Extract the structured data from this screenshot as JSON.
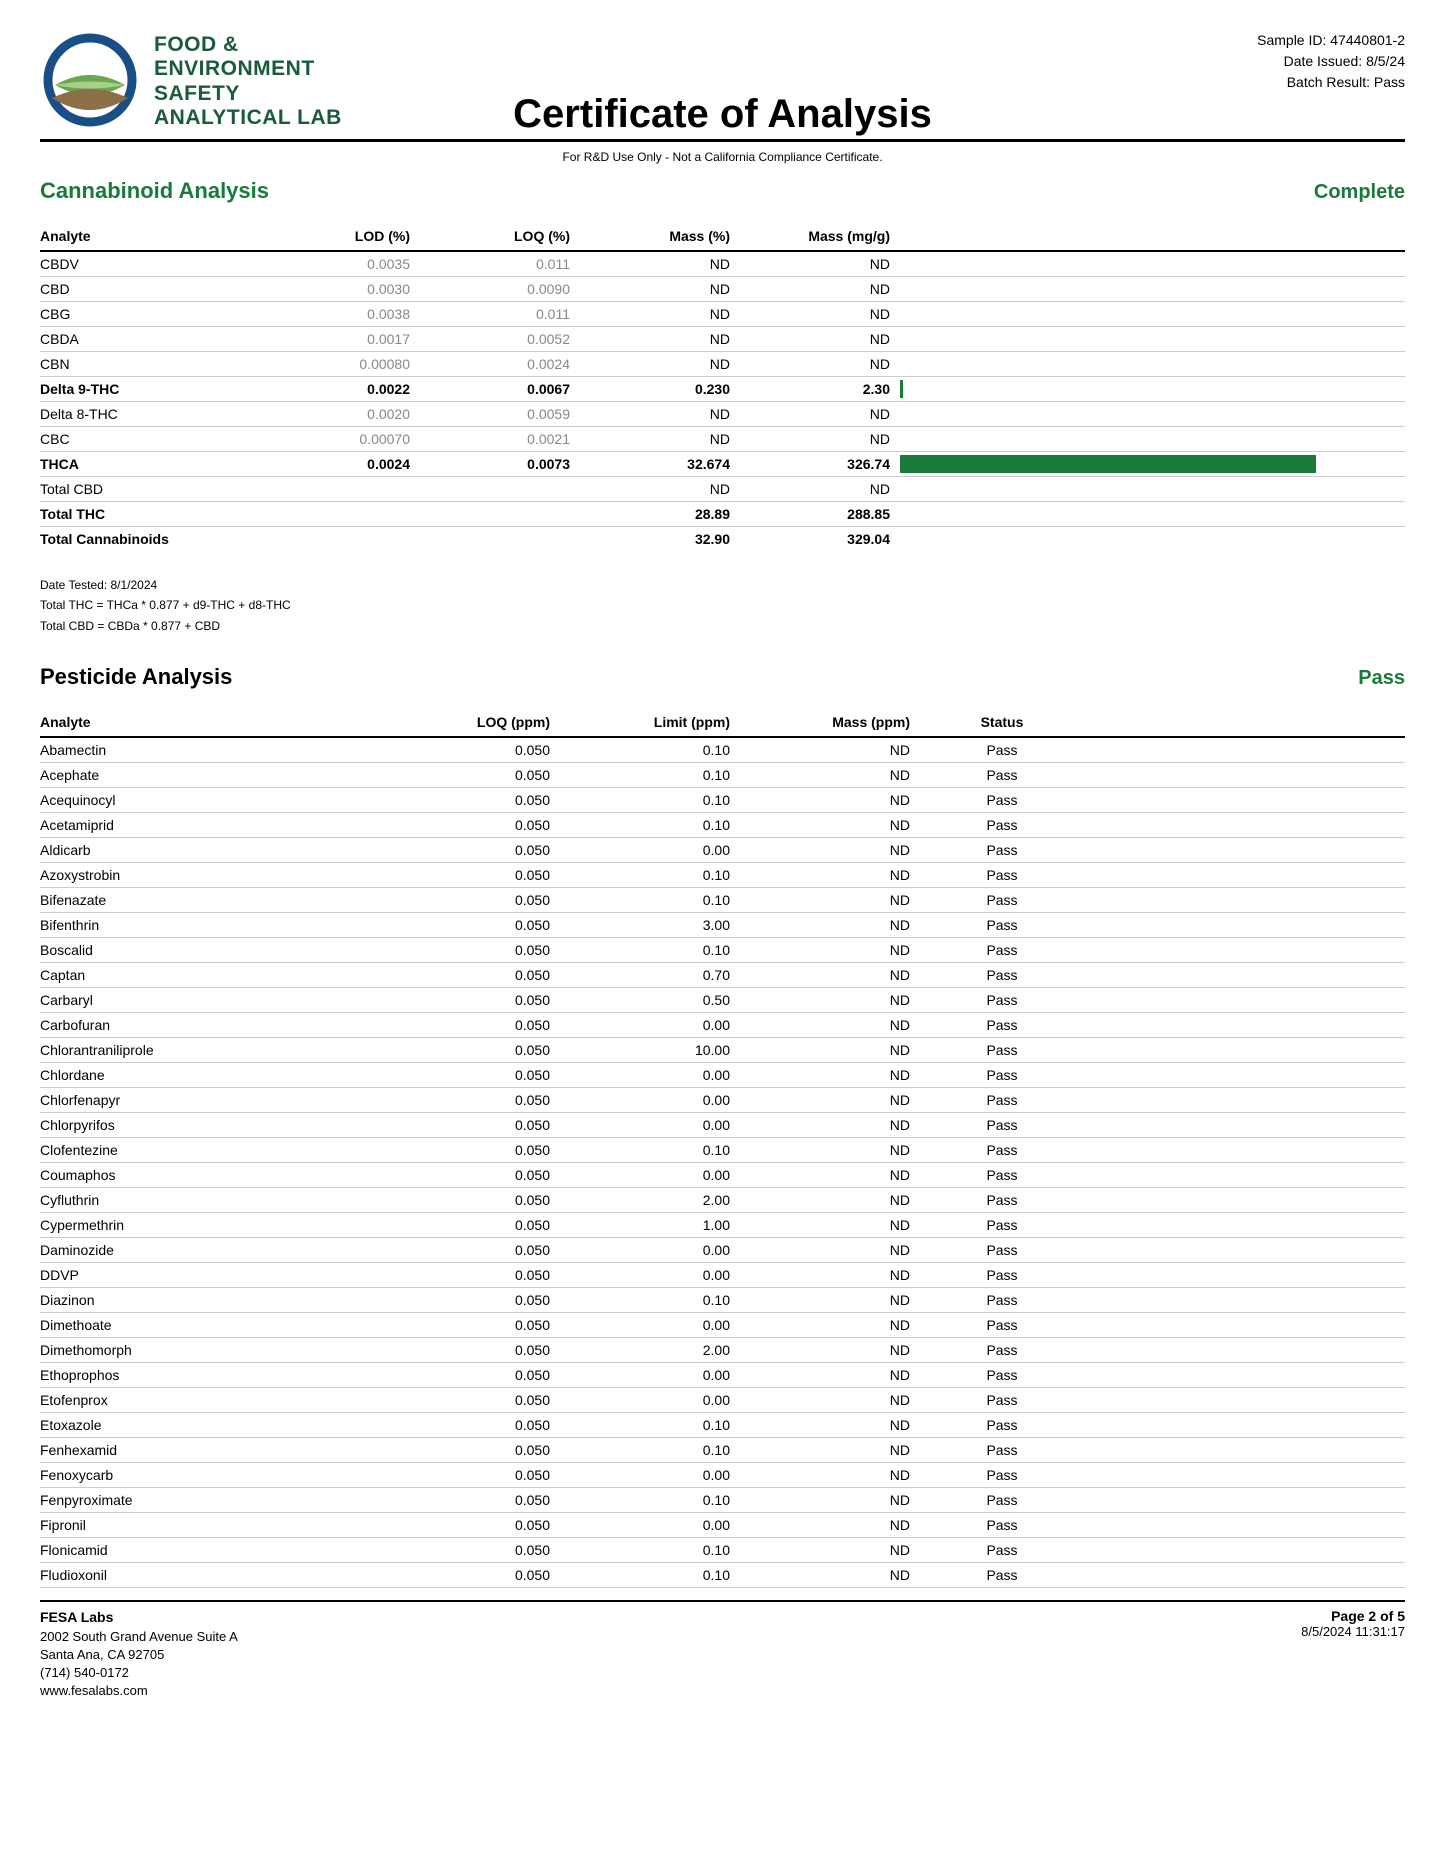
{
  "header": {
    "lab_name_line1": "FOOD &",
    "lab_name_line2": "ENVIRONMENT",
    "lab_name_line3": "SAFETY",
    "lab_name_line4": "ANALYTICAL LAB",
    "title": "Certificate of Analysis",
    "sample_id_label": "Sample ID: 47440801-2",
    "date_issued_label": "Date Issued: 8/5/24",
    "batch_result_label": "Batch Result: Pass",
    "disclaimer": "For R&D Use Only - Not a California Compliance Certificate."
  },
  "cannabinoid": {
    "title": "Cannabinoid Analysis",
    "status": "Complete",
    "columns": [
      "Analyte",
      "LOD (%)",
      "LOQ (%)",
      "Mass (%)",
      "Mass (mg/g)",
      ""
    ],
    "rows": [
      {
        "analyte": "CBDV",
        "lod": "0.0035",
        "loq": "0.011",
        "mass_pct": "ND",
        "mass_mg": "ND",
        "bold": false,
        "bar": 0
      },
      {
        "analyte": "CBD",
        "lod": "0.0030",
        "loq": "0.0090",
        "mass_pct": "ND",
        "mass_mg": "ND",
        "bold": false,
        "bar": 0
      },
      {
        "analyte": "CBG",
        "lod": "0.0038",
        "loq": "0.011",
        "mass_pct": "ND",
        "mass_mg": "ND",
        "bold": false,
        "bar": 0
      },
      {
        "analyte": "CBDA",
        "lod": "0.0017",
        "loq": "0.0052",
        "mass_pct": "ND",
        "mass_mg": "ND",
        "bold": false,
        "bar": 0
      },
      {
        "analyte": "CBN",
        "lod": "0.00080",
        "loq": "0.0024",
        "mass_pct": "ND",
        "mass_mg": "ND",
        "bold": false,
        "bar": 0
      },
      {
        "analyte": "Delta 9-THC",
        "lod": "0.0022",
        "loq": "0.0067",
        "mass_pct": "0.230",
        "mass_mg": "2.30",
        "bold": true,
        "bar": 0.7
      },
      {
        "analyte": "Delta 8-THC",
        "lod": "0.0020",
        "loq": "0.0059",
        "mass_pct": "ND",
        "mass_mg": "ND",
        "bold": false,
        "bar": 0
      },
      {
        "analyte": "CBC",
        "lod": "0.00070",
        "loq": "0.0021",
        "mass_pct": "ND",
        "mass_mg": "ND",
        "bold": false,
        "bar": 0
      },
      {
        "analyte": "THCA",
        "lod": "0.0024",
        "loq": "0.0073",
        "mass_pct": "32.674",
        "mass_mg": "326.74",
        "bold": true,
        "bar": 99
      },
      {
        "analyte": "Total CBD",
        "lod": "",
        "loq": "",
        "mass_pct": "ND",
        "mass_mg": "ND",
        "bold": false,
        "bar": 0
      },
      {
        "analyte": "Total THC",
        "lod": "",
        "loq": "",
        "mass_pct": "28.89",
        "mass_mg": "288.85",
        "bold": true,
        "bar": 0
      },
      {
        "analyte": "Total Cannabinoids",
        "lod": "",
        "loq": "",
        "mass_pct": "32.90",
        "mass_mg": "329.04",
        "bold": true,
        "bar": 0,
        "last": true
      }
    ],
    "notes": [
      "Date Tested: 8/1/2024",
      "Total THC = THCa * 0.877 + d9-THC + d8-THC",
      "Total CBD = CBDa * 0.877 + CBD"
    ],
    "bar_color": "#1a7a3a"
  },
  "pesticide": {
    "title": "Pesticide Analysis",
    "status": "Pass",
    "columns": [
      "Analyte",
      "LOQ (ppm)",
      "Limit (ppm)",
      "Mass (ppm)",
      "Status",
      ""
    ],
    "rows": [
      {
        "analyte": "Abamectin",
        "loq": "0.050",
        "limit": "0.10",
        "mass": "ND",
        "status": "Pass"
      },
      {
        "analyte": "Acephate",
        "loq": "0.050",
        "limit": "0.10",
        "mass": "ND",
        "status": "Pass"
      },
      {
        "analyte": "Acequinocyl",
        "loq": "0.050",
        "limit": "0.10",
        "mass": "ND",
        "status": "Pass"
      },
      {
        "analyte": "Acetamiprid",
        "loq": "0.050",
        "limit": "0.10",
        "mass": "ND",
        "status": "Pass"
      },
      {
        "analyte": "Aldicarb",
        "loq": "0.050",
        "limit": "0.00",
        "mass": "ND",
        "status": "Pass"
      },
      {
        "analyte": "Azoxystrobin",
        "loq": "0.050",
        "limit": "0.10",
        "mass": "ND",
        "status": "Pass"
      },
      {
        "analyte": "Bifenazate",
        "loq": "0.050",
        "limit": "0.10",
        "mass": "ND",
        "status": "Pass"
      },
      {
        "analyte": "Bifenthrin",
        "loq": "0.050",
        "limit": "3.00",
        "mass": "ND",
        "status": "Pass"
      },
      {
        "analyte": "Boscalid",
        "loq": "0.050",
        "limit": "0.10",
        "mass": "ND",
        "status": "Pass"
      },
      {
        "analyte": "Captan",
        "loq": "0.050",
        "limit": "0.70",
        "mass": "ND",
        "status": "Pass"
      },
      {
        "analyte": "Carbaryl",
        "loq": "0.050",
        "limit": "0.50",
        "mass": "ND",
        "status": "Pass"
      },
      {
        "analyte": "Carbofuran",
        "loq": "0.050",
        "limit": "0.00",
        "mass": "ND",
        "status": "Pass"
      },
      {
        "analyte": "Chlorantraniliprole",
        "loq": "0.050",
        "limit": "10.00",
        "mass": "ND",
        "status": "Pass"
      },
      {
        "analyte": "Chlordane",
        "loq": "0.050",
        "limit": "0.00",
        "mass": "ND",
        "status": "Pass"
      },
      {
        "analyte": "Chlorfenapyr",
        "loq": "0.050",
        "limit": "0.00",
        "mass": "ND",
        "status": "Pass"
      },
      {
        "analyte": "Chlorpyrifos",
        "loq": "0.050",
        "limit": "0.00",
        "mass": "ND",
        "status": "Pass"
      },
      {
        "analyte": "Clofentezine",
        "loq": "0.050",
        "limit": "0.10",
        "mass": "ND",
        "status": "Pass"
      },
      {
        "analyte": "Coumaphos",
        "loq": "0.050",
        "limit": "0.00",
        "mass": "ND",
        "status": "Pass"
      },
      {
        "analyte": "Cyfluthrin",
        "loq": "0.050",
        "limit": "2.00",
        "mass": "ND",
        "status": "Pass"
      },
      {
        "analyte": "Cypermethrin",
        "loq": "0.050",
        "limit": "1.00",
        "mass": "ND",
        "status": "Pass"
      },
      {
        "analyte": "Daminozide",
        "loq": "0.050",
        "limit": "0.00",
        "mass": "ND",
        "status": "Pass"
      },
      {
        "analyte": "DDVP",
        "loq": "0.050",
        "limit": "0.00",
        "mass": "ND",
        "status": "Pass"
      },
      {
        "analyte": "Diazinon",
        "loq": "0.050",
        "limit": "0.10",
        "mass": "ND",
        "status": "Pass"
      },
      {
        "analyte": "Dimethoate",
        "loq": "0.050",
        "limit": "0.00",
        "mass": "ND",
        "status": "Pass"
      },
      {
        "analyte": "Dimethomorph",
        "loq": "0.050",
        "limit": "2.00",
        "mass": "ND",
        "status": "Pass"
      },
      {
        "analyte": "Ethoprophos",
        "loq": "0.050",
        "limit": "0.00",
        "mass": "ND",
        "status": "Pass"
      },
      {
        "analyte": "Etofenprox",
        "loq": "0.050",
        "limit": "0.00",
        "mass": "ND",
        "status": "Pass"
      },
      {
        "analyte": "Etoxazole",
        "loq": "0.050",
        "limit": "0.10",
        "mass": "ND",
        "status": "Pass"
      },
      {
        "analyte": "Fenhexamid",
        "loq": "0.050",
        "limit": "0.10",
        "mass": "ND",
        "status": "Pass"
      },
      {
        "analyte": "Fenoxycarb",
        "loq": "0.050",
        "limit": "0.00",
        "mass": "ND",
        "status": "Pass"
      },
      {
        "analyte": "Fenpyroximate",
        "loq": "0.050",
        "limit": "0.10",
        "mass": "ND",
        "status": "Pass"
      },
      {
        "analyte": "Fipronil",
        "loq": "0.050",
        "limit": "0.00",
        "mass": "ND",
        "status": "Pass"
      },
      {
        "analyte": "Flonicamid",
        "loq": "0.050",
        "limit": "0.10",
        "mass": "ND",
        "status": "Pass"
      },
      {
        "analyte": "Fludioxonil",
        "loq": "0.050",
        "limit": "0.10",
        "mass": "ND",
        "status": "Pass"
      }
    ]
  },
  "footer": {
    "lab": "FESA Labs",
    "addr1": "2002 South Grand Avenue Suite A",
    "addr2": "Santa Ana, CA 92705",
    "phone": "(714) 540-0172",
    "web": "www.fesalabs.com",
    "page": "Page 2 of 5",
    "timestamp": "8/5/2024 11:31:17"
  }
}
